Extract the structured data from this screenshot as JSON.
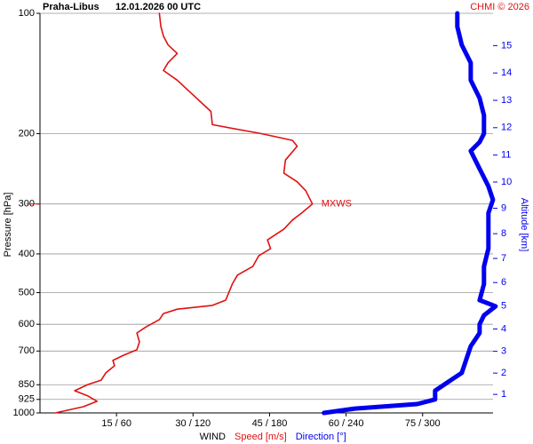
{
  "chart_data": {
    "type": "line",
    "title": "Praha-Libus",
    "subtitle": "12.01.2026 00 UTC",
    "source": "CHMI © 2026",
    "ylabel": "Pressure [hPa]",
    "y2label": "Altitude [km]",
    "xlabel": "WIND",
    "log_y": true,
    "y_inverted": true,
    "grid": true,
    "ylim": [
      100,
      1000
    ],
    "yticks": [
      100,
      200,
      300,
      400,
      500,
      600,
      700,
      850,
      925,
      1000
    ],
    "xlim": [
      0,
      88.8
    ],
    "x2lim": [
      0,
      355.2
    ],
    "xticks": [
      {
        "value": 15,
        "label": "15 / 60"
      },
      {
        "value": 30,
        "label": "30 / 120"
      },
      {
        "value": 45,
        "label": "45 / 180"
      },
      {
        "value": 60,
        "label": "60 / 240"
      },
      {
        "value": 75,
        "label": "75 / 300"
      }
    ],
    "y2ticks": [
      1,
      2,
      3,
      4,
      5,
      6,
      7,
      8,
      9,
      10,
      11,
      12,
      13,
      14,
      15
    ],
    "annotations": [
      {
        "text": "MXWS",
        "pressure": 300
      }
    ],
    "series": [
      {
        "name": "Speed [m/s]",
        "color": "#e01010",
        "width": 1.6,
        "y": [
          1000,
          965,
          935,
          907,
          880,
          849,
          828,
          794,
          762,
          739,
          717,
          695,
          664,
          631,
          609,
          584,
          564,
          550,
          538,
          522,
          476,
          452,
          430,
          404,
          388,
          369,
          347,
          329,
          316,
          300,
          278,
          264,
          251,
          233,
          215,
          208,
          200,
          190,
          176,
          154,
          147,
          139,
          133,
          126,
          120,
          114,
          108,
          100
        ],
        "values": [
          3.0,
          8.5,
          11.2,
          9.4,
          6.8,
          9.4,
          12.0,
          12.9,
          14.6,
          14.3,
          16.4,
          19.0,
          19.5,
          19.0,
          20.8,
          23.4,
          24.2,
          26.9,
          33.8,
          36.4,
          37.7,
          38.7,
          41.7,
          42.9,
          45.2,
          44.6,
          47.8,
          49.5,
          51.3,
          53.4,
          52.1,
          50.4,
          47.8,
          48.1,
          50.4,
          49.5,
          43.4,
          33.8,
          33.5,
          28.6,
          26.9,
          24.2,
          25.1,
          26.9,
          25.1,
          24.2,
          23.7,
          23.4
        ]
      },
      {
        "name": "Direction [°]",
        "color": "#0000ee",
        "width": 5,
        "axis": "x2",
        "y": [
          1000,
          975,
          950,
          925,
          880,
          836,
          794,
          736,
          681,
          631,
          600,
          570,
          541,
          522,
          476,
          430,
          388,
          347,
          316,
          293,
          271,
          245,
          221,
          210,
          200,
          180,
          163,
          147,
          133,
          120,
          108,
          100
        ],
        "values": [
          222.6,
          247,
          295.8,
          309.8,
          309.8,
          320.2,
          330.7,
          334.2,
          337.7,
          344.7,
          344.7,
          348.1,
          357.2,
          344.7,
          348.1,
          348.1,
          351.6,
          351.6,
          351.6,
          355.1,
          351.6,
          344.7,
          337.7,
          344.7,
          348.1,
          348.1,
          344.7,
          337.7,
          337.7,
          330.7,
          327.2,
          327.2
        ]
      }
    ]
  }
}
